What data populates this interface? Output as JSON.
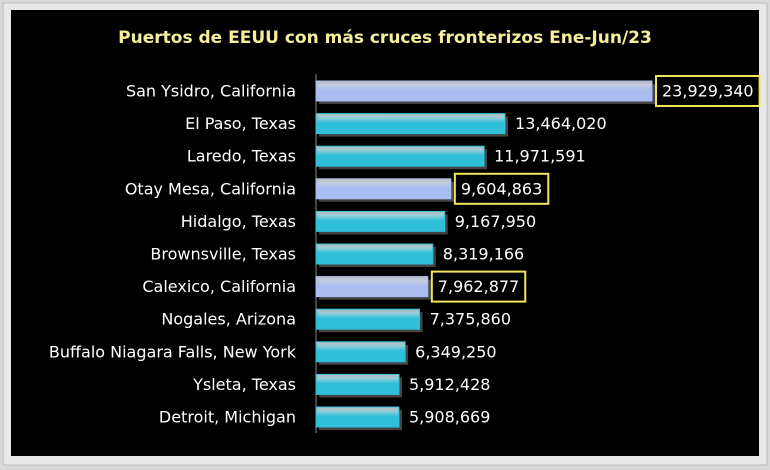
{
  "chart_data": {
    "type": "bar",
    "orientation": "horizontal",
    "title": "Puertos de EEUU con más cruces fronterizos Ene-Jun/23",
    "categories": [
      "San Ysidro, California",
      "El Paso, Texas",
      "Laredo, Texas",
      "Otay Mesa, California",
      "Hidalgo, Texas",
      "Brownsville, Texas",
      "Calexico, California",
      "Nogales, Arizona",
      "Buffalo Niagara Falls, New York",
      "Ysleta, Texas",
      "Detroit, Michigan"
    ],
    "values": [
      23929340,
      13464020,
      11971591,
      9604863,
      9167950,
      8319166,
      7962877,
      7375860,
      6349250,
      5912428,
      5908669
    ],
    "value_labels": [
      "23,929,340",
      "13,464,020",
      "11,971,591",
      "9,604,863",
      "9,167,950",
      "8,319,166",
      "7,962,877",
      "7,375,860",
      "6,349,250",
      "5,912,428",
      "5,908,669"
    ],
    "colors": [
      "#a9bdf0",
      "#2fbfd9",
      "#2fbfd9",
      "#a9bdf0",
      "#2fbfd9",
      "#2fbfd9",
      "#a9bdf0",
      "#2fbfd9",
      "#2fbfd9",
      "#2fbfd9",
      "#2fbfd9"
    ],
    "highlighted": [
      true,
      false,
      false,
      true,
      false,
      false,
      true,
      false,
      false,
      false,
      false
    ],
    "highlight_color": "#f2e55c",
    "title_color": "#f5ef9a"
  }
}
